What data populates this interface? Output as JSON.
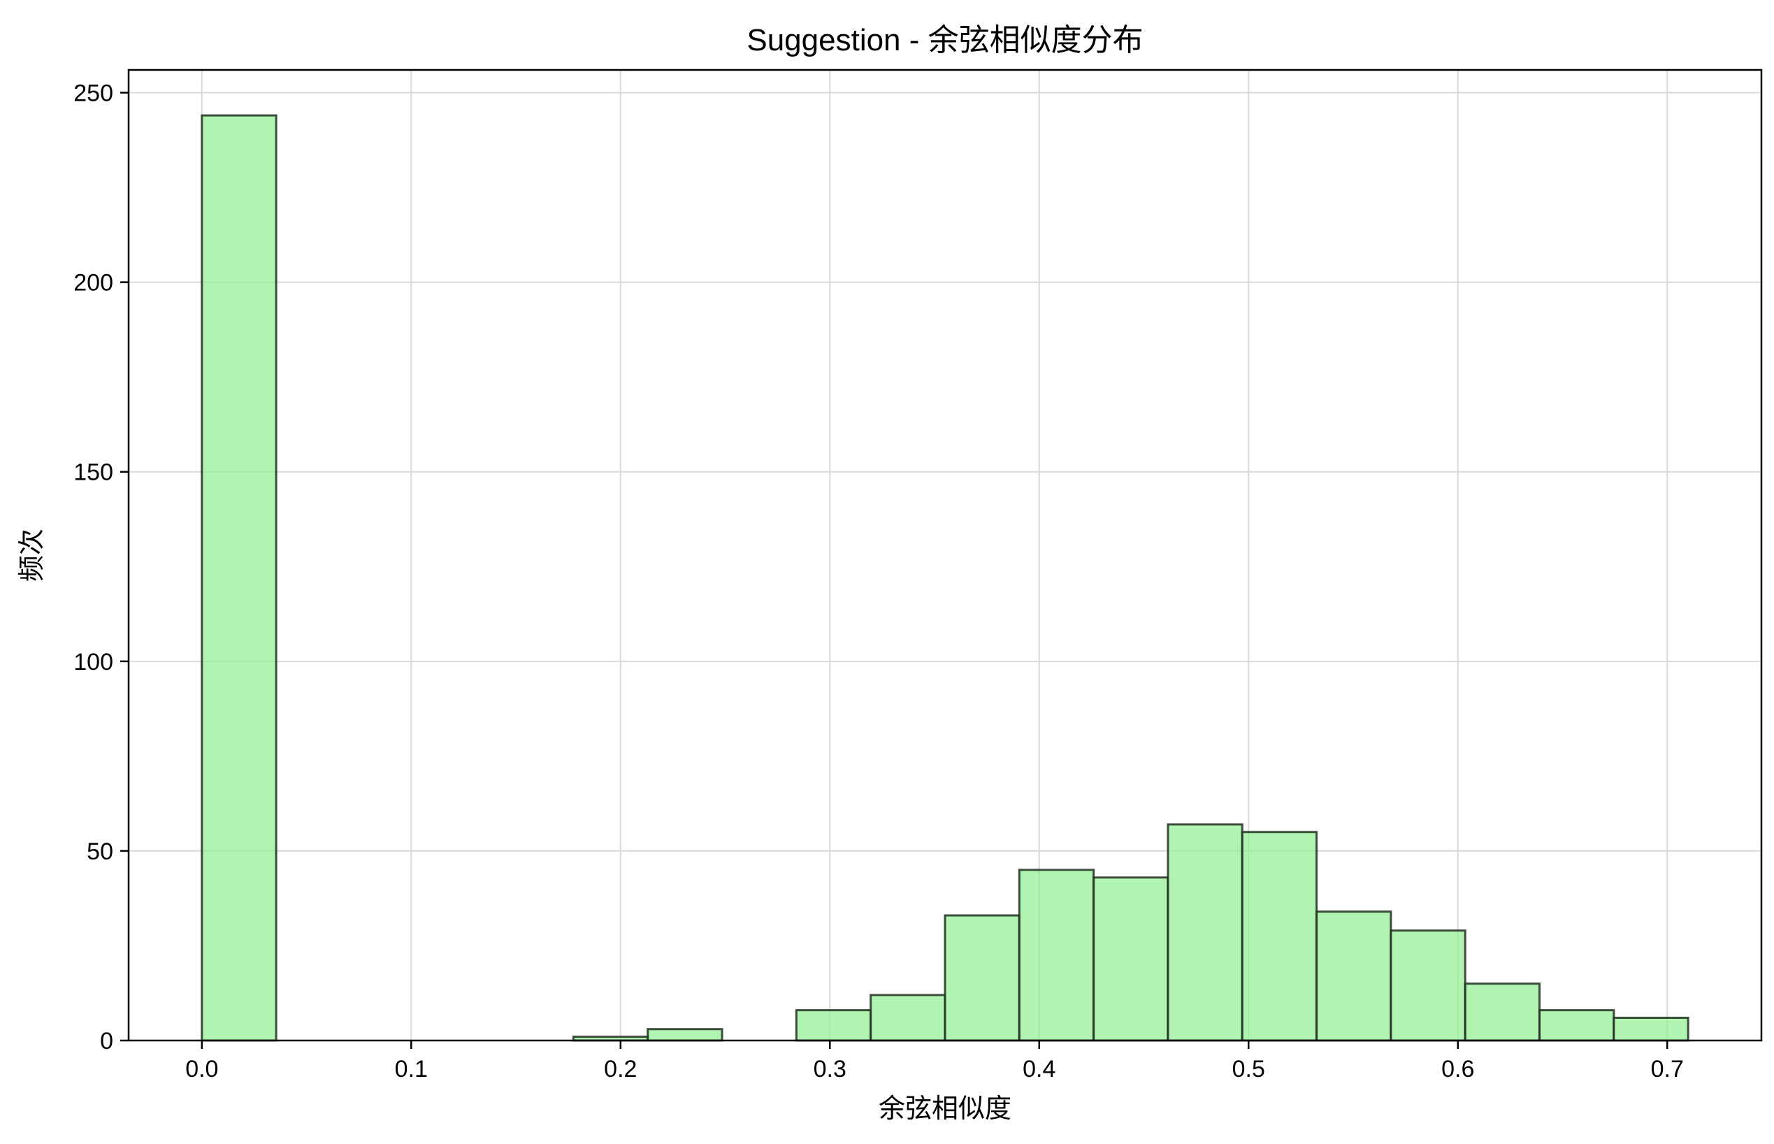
{
  "chart_data": {
    "type": "bar",
    "title": "Suggestion - 余弦相似度分布",
    "xlabel": "余弦相似度",
    "ylabel": "频次",
    "xlim": [
      -0.035,
      0.745
    ],
    "ylim": [
      0,
      256
    ],
    "xticks": [
      "0.0",
      "0.1",
      "0.2",
      "0.3",
      "0.4",
      "0.5",
      "0.6",
      "0.7"
    ],
    "yticks": [
      "0",
      "50",
      "100",
      "150",
      "200",
      "250"
    ],
    "grid": true,
    "bin_edges": [
      0.0,
      0.0355,
      0.071,
      0.1065,
      0.142,
      0.1775,
      0.213,
      0.2485,
      0.284,
      0.3195,
      0.355,
      0.3905,
      0.426,
      0.4615,
      0.497,
      0.5325,
      0.568,
      0.6035,
      0.639,
      0.6745,
      0.71
    ],
    "values": [
      244,
      0,
      0,
      0,
      0,
      1,
      3,
      0,
      8,
      12,
      33,
      45,
      43,
      57,
      55,
      34,
      29,
      15,
      8,
      6
    ],
    "colors": {
      "bar_fill": "#90ee90",
      "bar_edge": "#1f2f1f",
      "grid": "#d9d9d9"
    }
  }
}
